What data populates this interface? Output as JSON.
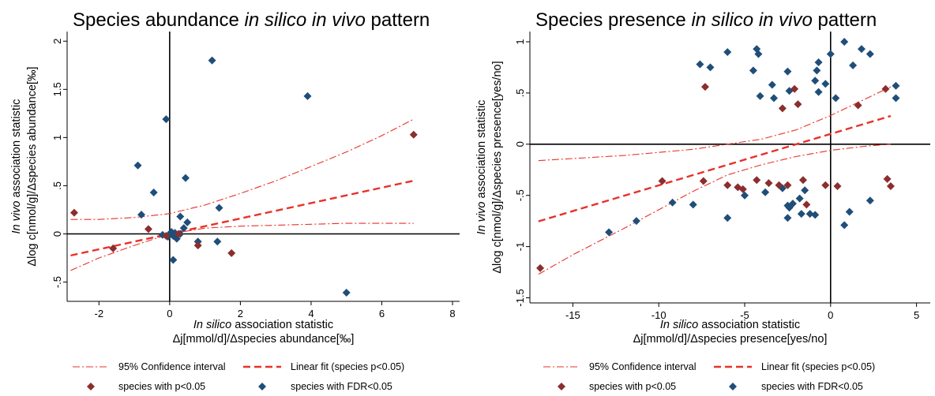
{
  "figure": {
    "background": "#ffffff"
  },
  "colors": {
    "fdr": "#1f4e79",
    "pval": "#8b2e2e",
    "fit": "#e8312a",
    "ci": "#e8312a",
    "axes": "#000000"
  },
  "chart_data": [
    {
      "type": "scatter",
      "title": "Species abundance in silico in vivo pattern",
      "title_parts": [
        {
          "text": "Species abundance ",
          "italic": false
        },
        {
          "text": "in silico in vivo",
          "italic": true
        },
        {
          "text": " pattern",
          "italic": false
        }
      ],
      "xlabel_line1_parts": [
        {
          "text": "In silico",
          "italic": true
        },
        {
          "text": " association statistic",
          "italic": false
        }
      ],
      "xlabel_line2": "Δj[mmol/d]/Δspecies abundance[‰]",
      "ylabel_line1_parts": [
        {
          "text": "In vivo",
          "italic": true
        },
        {
          "text": " association statistic",
          "italic": false
        }
      ],
      "ylabel_line2": "Δlog c[nmol/g]/Δspecies abundance[‰]",
      "xlim": [
        -2.9,
        8.2
      ],
      "ylim": [
        -0.7,
        2.1
      ],
      "xticks": [
        -2,
        0,
        2,
        4,
        6,
        8
      ],
      "xtick_labels": [
        "-2",
        "0",
        "2",
        "4",
        "6",
        "8"
      ],
      "yticks": [
        -0.5,
        0,
        0.5,
        1,
        1.5,
        2
      ],
      "ytick_labels": [
        "-.5",
        "0",
        ".5",
        "1",
        "1.5",
        "2"
      ],
      "grid": false,
      "zero_lines": true,
      "series": [
        {
          "name": "species with FDR<0.05",
          "marker": "diamond",
          "color": "#1f4e79",
          "points": [
            [
              1.2,
              1.8
            ],
            [
              3.9,
              1.43
            ],
            [
              -0.1,
              1.19
            ],
            [
              -0.9,
              0.71
            ],
            [
              -0.45,
              0.43
            ],
            [
              0.45,
              0.58
            ],
            [
              -0.8,
              0.2
            ],
            [
              1.4,
              0.27
            ],
            [
              0.3,
              0.18
            ],
            [
              0.5,
              0.12
            ],
            [
              0.4,
              0.06
            ],
            [
              0.3,
              0.0
            ],
            [
              -0.2,
              -0.01
            ],
            [
              0.0,
              0.0
            ],
            [
              0.1,
              -0.02
            ],
            [
              0.2,
              -0.05
            ],
            [
              0.05,
              0.02
            ],
            [
              -0.05,
              -0.03
            ],
            [
              0.15,
              0.01
            ],
            [
              0.8,
              -0.08
            ],
            [
              1.35,
              -0.08
            ],
            [
              0.1,
              -0.27
            ],
            [
              5.0,
              -0.61
            ]
          ]
        },
        {
          "name": "species with p<0.05",
          "marker": "diamond",
          "color": "#8b2e2e",
          "points": [
            [
              6.9,
              1.03
            ],
            [
              -2.7,
              0.22
            ],
            [
              -0.6,
              0.05
            ],
            [
              -0.1,
              -0.02
            ],
            [
              -1.6,
              -0.15
            ],
            [
              1.75,
              -0.2
            ],
            [
              0.8,
              -0.12
            ],
            [
              0.25,
              0.0
            ]
          ]
        }
      ],
      "fit": {
        "name": "Linear fit (species p<0.05)",
        "x_range": [
          -2.8,
          6.9
        ],
        "y_at_x0": 0.0,
        "slope": 0.08
      },
      "ci": {
        "name": "95% Confidence interval",
        "x": [
          -2.8,
          -2,
          -1,
          0,
          1,
          2,
          3,
          4,
          5,
          6,
          6.9
        ],
        "upper": [
          0.15,
          0.15,
          0.17,
          0.21,
          0.3,
          0.42,
          0.55,
          0.7,
          0.85,
          1.02,
          1.19
        ],
        "lower": [
          -0.38,
          -0.25,
          -0.12,
          0.0,
          0.06,
          0.08,
          0.09,
          0.1,
          0.11,
          0.11,
          0.11
        ]
      },
      "legend": {
        "position": "bottom",
        "entries": [
          "95% Confidence interval",
          "Linear fit (species p<0.05)",
          "species with p<0.05",
          "species with FDR<0.05"
        ]
      }
    },
    {
      "type": "scatter",
      "title": "Species presence in silico in vivo pattern",
      "title_parts": [
        {
          "text": "Species presence ",
          "italic": false
        },
        {
          "text": "in silico in vivo",
          "italic": true
        },
        {
          "text": " pattern",
          "italic": false
        }
      ],
      "xlabel_line1_parts": [
        {
          "text": "In silico",
          "italic": true
        },
        {
          "text": " association statistic",
          "italic": false
        }
      ],
      "xlabel_line2": "Δj[mmol/d]/Δspecies presence[yes/no]",
      "ylabel_line1_parts": [
        {
          "text": "In vivo",
          "italic": true
        },
        {
          "text": " association statistic",
          "italic": false
        }
      ],
      "ylabel_line2": "Δlog c[nmol/g]/Δspecies presence[yes/no]",
      "xlim": [
        -17.5,
        5.8
      ],
      "ylim": [
        -1.55,
        1.1
      ],
      "xticks": [
        -15,
        -10,
        -5,
        0,
        5
      ],
      "xtick_labels": [
        "-15",
        "-10",
        "-5",
        "0",
        "5"
      ],
      "yticks": [
        -1.5,
        -1,
        -0.5,
        0,
        0.5,
        1
      ],
      "ytick_labels": [
        "-1.5",
        "-1",
        "-.5",
        "0",
        ".5",
        "1"
      ],
      "grid": false,
      "zero_lines": true,
      "series": [
        {
          "name": "species with FDR<0.05",
          "marker": "diamond",
          "color": "#1f4e79",
          "points": [
            [
              -7.6,
              0.78
            ],
            [
              -7.0,
              0.75
            ],
            [
              -6.0,
              0.9
            ],
            [
              -4.3,
              0.93
            ],
            [
              -4.2,
              0.88
            ],
            [
              -4.5,
              0.72
            ],
            [
              -3.4,
              0.58
            ],
            [
              -3.3,
              0.45
            ],
            [
              -2.5,
              0.71
            ],
            [
              -2.4,
              0.52
            ],
            [
              -0.9,
              0.62
            ],
            [
              -0.8,
              0.72
            ],
            [
              -0.7,
              0.8
            ],
            [
              -0.3,
              0.59
            ],
            [
              0.0,
              0.88
            ],
            [
              -0.7,
              0.51
            ],
            [
              0.8,
              1.0
            ],
            [
              1.8,
              0.93
            ],
            [
              2.3,
              0.88
            ],
            [
              1.3,
              0.77
            ],
            [
              3.8,
              0.57
            ],
            [
              3.8,
              0.45
            ],
            [
              0.3,
              0.45
            ],
            [
              -4.1,
              0.47
            ],
            [
              -9.2,
              -0.57
            ],
            [
              -12.9,
              -0.86
            ],
            [
              -11.3,
              -0.75
            ],
            [
              -8.0,
              -0.59
            ],
            [
              -6.0,
              -0.72
            ],
            [
              -5.0,
              -0.5
            ],
            [
              -3.8,
              -0.47
            ],
            [
              -2.8,
              -0.43
            ],
            [
              -2.5,
              -0.6
            ],
            [
              -2.4,
              -0.62
            ],
            [
              -2.2,
              -0.58
            ],
            [
              -1.8,
              -0.53
            ],
            [
              -1.5,
              -0.45
            ],
            [
              -1.2,
              -0.68
            ],
            [
              -1.7,
              -0.68
            ],
            [
              -0.9,
              -0.69
            ],
            [
              -2.5,
              -0.72
            ],
            [
              0.8,
              -0.79
            ],
            [
              1.1,
              -0.66
            ],
            [
              2.3,
              -0.55
            ]
          ]
        },
        {
          "name": "species with p<0.05",
          "marker": "diamond",
          "color": "#8b2e2e",
          "points": [
            [
              -7.3,
              0.56
            ],
            [
              -2.8,
              0.35
            ],
            [
              -1.9,
              0.39
            ],
            [
              -2.1,
              0.54
            ],
            [
              1.6,
              0.38
            ],
            [
              3.2,
              0.54
            ],
            [
              -16.9,
              -1.21
            ],
            [
              -9.8,
              -0.36
            ],
            [
              -7.4,
              -0.36
            ],
            [
              -6.0,
              -0.4
            ],
            [
              -5.4,
              -0.42
            ],
            [
              -5.1,
              -0.44
            ],
            [
              -4.3,
              -0.35
            ],
            [
              -3.6,
              -0.38
            ],
            [
              -3.0,
              -0.4
            ],
            [
              -2.5,
              -0.4
            ],
            [
              -1.6,
              -0.35
            ],
            [
              -0.3,
              -0.4
            ],
            [
              0.4,
              -0.41
            ],
            [
              3.3,
              -0.34
            ],
            [
              3.5,
              -0.41
            ],
            [
              -1.4,
              -0.59
            ]
          ]
        }
      ],
      "fit": {
        "name": "Linear fit (species p<0.05)",
        "x_range": [
          -17.0,
          3.5
        ],
        "y_at_x0": 0.1,
        "slope": 0.0502
      },
      "ci": {
        "name": "95% Confidence interval",
        "x": [
          -17,
          -15,
          -12,
          -10,
          -8,
          -6,
          -4,
          -2,
          0,
          2,
          3.5
        ],
        "upper": [
          -0.16,
          -0.14,
          -0.11,
          -0.08,
          -0.05,
          0.0,
          0.05,
          0.14,
          0.28,
          0.44,
          0.56
        ],
        "lower": [
          -1.27,
          -1.08,
          -0.82,
          -0.64,
          -0.46,
          -0.3,
          -0.2,
          -0.12,
          -0.06,
          -0.02,
          0.0
        ]
      },
      "legend": {
        "position": "bottom",
        "entries": [
          "95% Confidence interval",
          "Linear fit (species p<0.05)",
          "species with p<0.05",
          "species with FDR<0.05"
        ]
      }
    }
  ]
}
